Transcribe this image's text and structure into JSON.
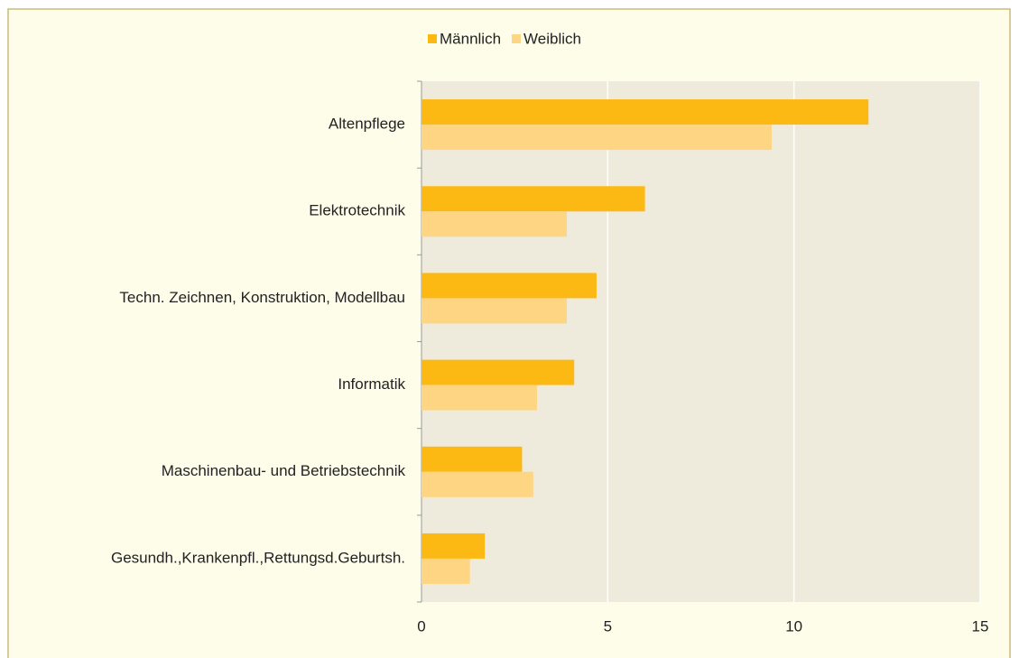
{
  "chart_data": {
    "type": "hbar",
    "categories": [
      "Altenpflege",
      "Elektrotechnik",
      "Techn. Zeichnen, Konstruktion, Modellbau",
      "Informatik",
      "Maschinenbau- und Betriebstechnik",
      "Gesundh.,Krankenpfl.,Rettungsd.Geburtsh."
    ],
    "series": [
      {
        "name": "Männlich",
        "color": "#fdb913",
        "values": [
          12.0,
          6.0,
          4.7,
          4.1,
          2.7,
          1.7
        ]
      },
      {
        "name": "Weiblich",
        "color": "#fed582",
        "values": [
          9.4,
          3.9,
          3.9,
          3.1,
          3.0,
          1.3
        ]
      }
    ],
    "xlim": [
      0,
      15
    ],
    "xticks": [
      0,
      5,
      10,
      15
    ],
    "grid": true,
    "legend": "top"
  }
}
